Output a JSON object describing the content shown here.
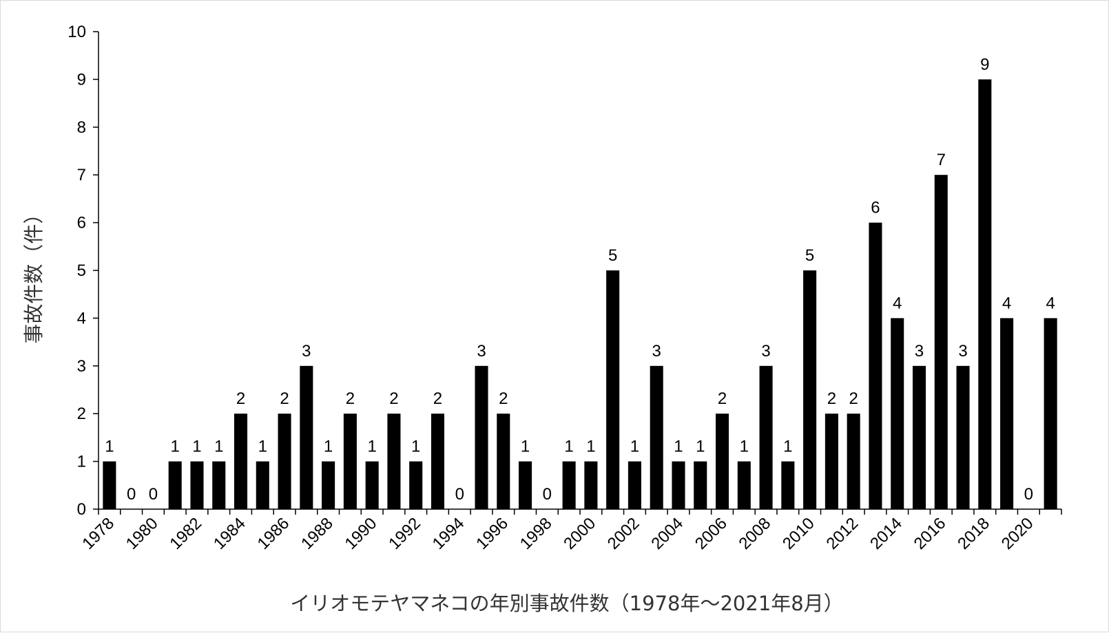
{
  "chart_data": {
    "type": "bar",
    "title": "",
    "xlabel": "イリオモテヤマネコの年別事故件数（1978年～2021年8月）",
    "ylabel": "事故件数（件）",
    "ylim": [
      0,
      10
    ],
    "ytick_labels": [
      "0",
      "1",
      "2",
      "3",
      "4",
      "5",
      "6",
      "7",
      "8",
      "9",
      "10"
    ],
    "xtick_labels": [
      "1978",
      "1980",
      "1982",
      "1984",
      "1986",
      "1988",
      "1990",
      "1992",
      "1994",
      "1996",
      "1998",
      "2000",
      "2002",
      "2004",
      "2006",
      "2008",
      "2010",
      "2012",
      "2014",
      "2016",
      "2018",
      "2020"
    ],
    "categories": [
      "1978",
      "1979",
      "1980",
      "1981",
      "1982",
      "1983",
      "1984",
      "1985",
      "1986",
      "1987",
      "1988",
      "1989",
      "1990",
      "1991",
      "1992",
      "1993",
      "1994",
      "1995",
      "1996",
      "1997",
      "1998",
      "1999",
      "2000",
      "2001",
      "2002",
      "2003",
      "2004",
      "2005",
      "2006",
      "2007",
      "2008",
      "2009",
      "2010",
      "2011",
      "2012",
      "2013",
      "2014",
      "2015",
      "2016",
      "2017",
      "2018",
      "2019",
      "2020",
      "2021"
    ],
    "values": [
      1,
      0,
      0,
      1,
      1,
      1,
      2,
      1,
      2,
      3,
      1,
      2,
      1,
      2,
      1,
      2,
      0,
      3,
      2,
      1,
      0,
      1,
      1,
      5,
      1,
      3,
      1,
      1,
      2,
      1,
      3,
      1,
      5,
      2,
      2,
      6,
      4,
      3,
      7,
      3,
      9,
      4,
      0,
      4
    ],
    "data_labels": [
      "1",
      "0",
      "0",
      "1",
      "1",
      "1",
      "2",
      "1",
      "2",
      "3",
      "1",
      "2",
      "1",
      "2",
      "1",
      "2",
      "0",
      "3",
      "2",
      "1",
      "0",
      "1",
      "1",
      "5",
      "1",
      "3",
      "1",
      "1",
      "2",
      "1",
      "3",
      "1",
      "5",
      "2",
      "2",
      "6",
      "4",
      "3",
      "7",
      "3",
      "9",
      "4",
      "0",
      "4"
    ],
    "bar_color": "#000000",
    "grid": false,
    "legend": "none"
  }
}
